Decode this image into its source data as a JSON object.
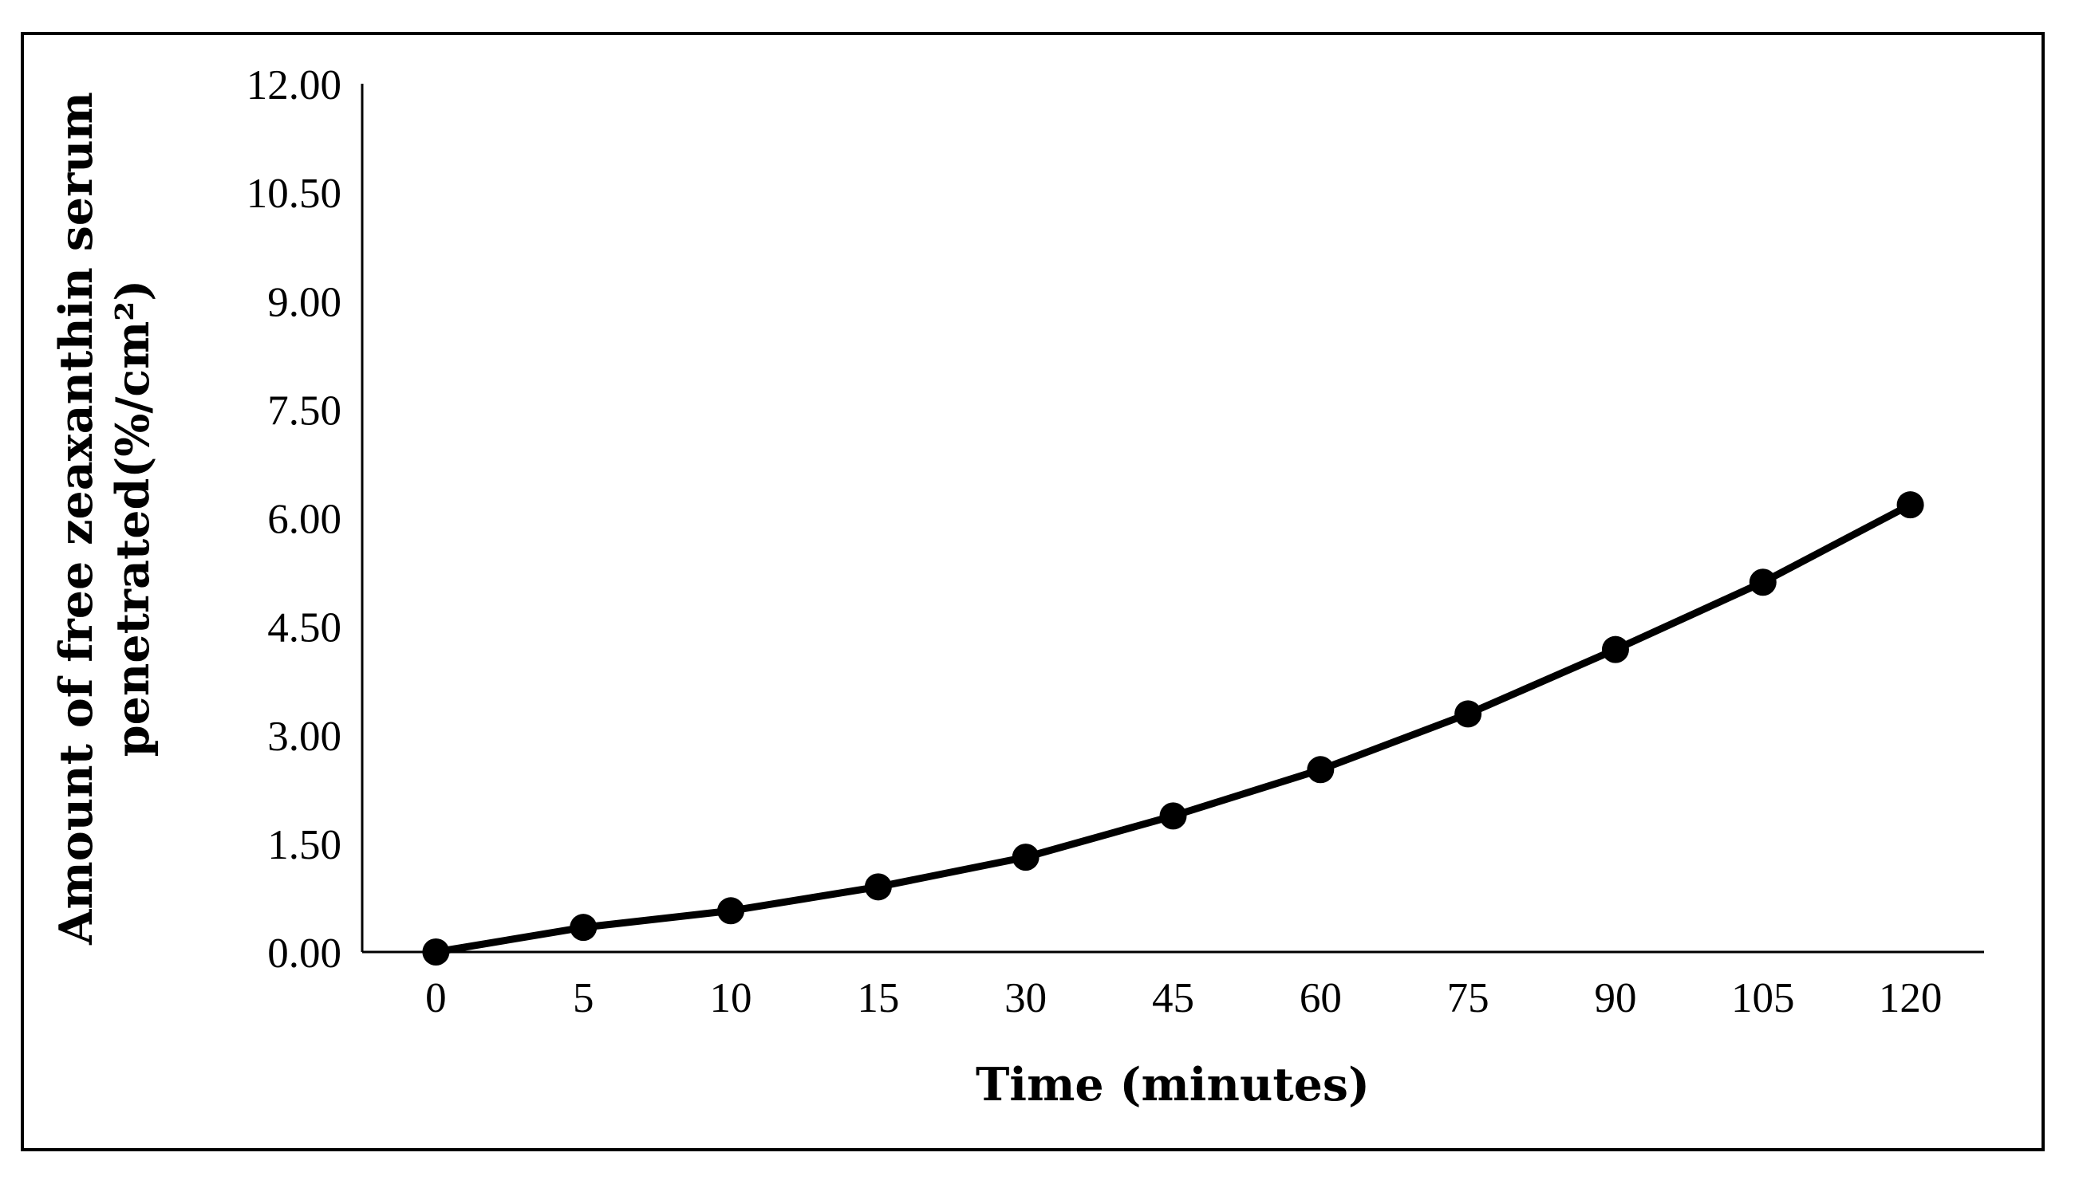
{
  "figure": {
    "background_color": "#ffffff",
    "border_color": "#000000",
    "series_color": "#000000"
  },
  "chart_data": {
    "type": "line",
    "title": "",
    "x_axis_type": "categorical",
    "categories": [
      "0",
      "5",
      "10",
      "15",
      "30",
      "45",
      "60",
      "75",
      "90",
      "105",
      "120"
    ],
    "values": [
      0.0,
      0.34,
      0.57,
      0.9,
      1.31,
      1.88,
      2.52,
      3.29,
      4.18,
      5.11,
      6.18
    ],
    "xlabel": "Time (minutes)",
    "ylabel_line1": "Amount of free zeaxanthin serum",
    "ylabel_line2": "penetrated(%/cm²)",
    "y_ticks": [
      "0.00",
      "1.50",
      "3.00",
      "4.50",
      "6.00",
      "7.50",
      "9.00",
      "10.50",
      "12.00"
    ],
    "ylim": [
      0,
      12
    ],
    "grid": false,
    "legend": "none",
    "marker": "circle",
    "line_color": "#000000",
    "marker_color": "#000000"
  }
}
